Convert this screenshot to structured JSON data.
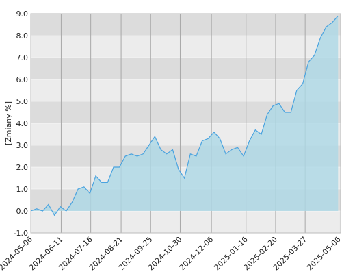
{
  "chart_data": {
    "type": "area",
    "y_label": "[Zmiany %]",
    "x": [
      "2024-05-06",
      "2024-05-13",
      "2024-05-20",
      "2024-05-27",
      "2024-06-03",
      "2024-06-10",
      "2024-06-17",
      "2024-06-24",
      "2024-07-01",
      "2024-07-08",
      "2024-07-15",
      "2024-07-22",
      "2024-07-29",
      "2024-08-05",
      "2024-08-12",
      "2024-08-19",
      "2024-08-26",
      "2024-09-02",
      "2024-09-09",
      "2024-09-16",
      "2024-09-23",
      "2024-09-30",
      "2024-10-07",
      "2024-10-14",
      "2024-10-21",
      "2024-10-28",
      "2024-11-04",
      "2024-11-11",
      "2024-11-18",
      "2024-11-25",
      "2024-12-02",
      "2024-12-09",
      "2024-12-16",
      "2024-12-23",
      "2024-12-30",
      "2025-01-06",
      "2025-01-13",
      "2025-01-20",
      "2025-01-27",
      "2025-02-03",
      "2025-02-10",
      "2025-02-17",
      "2025-02-24",
      "2025-03-03",
      "2025-03-10",
      "2025-03-17",
      "2025-03-24",
      "2025-03-31",
      "2025-04-07",
      "2025-04-14",
      "2025-04-21",
      "2025-04-28",
      "2025-05-05"
    ],
    "series": [
      {
        "color": "#4aa3df",
        "fill": "#add8e6",
        "values": [
          0.0,
          0.1,
          0.0,
          0.3,
          -0.2,
          0.2,
          0.0,
          0.4,
          1.0,
          1.1,
          0.8,
          1.6,
          1.3,
          1.3,
          2.0,
          2.0,
          2.5,
          2.6,
          2.5,
          2.6,
          3.0,
          3.4,
          2.8,
          2.6,
          2.8,
          1.9,
          1.5,
          2.6,
          2.5,
          3.2,
          3.3,
          3.6,
          3.3,
          2.6,
          2.8,
          2.9,
          2.5,
          3.2,
          3.7,
          3.5,
          4.4,
          4.8,
          4.9,
          4.5,
          4.5,
          5.5,
          5.8,
          6.8,
          7.1,
          7.9,
          8.4,
          8.6,
          8.9
        ]
      }
    ],
    "xlim": [
      "2024-05-06",
      "2025-05-08"
    ],
    "xticks": [
      "2024-05-06",
      "2024-06-11",
      "2024-07-16",
      "2024-08-21",
      "2024-09-25",
      "2024-10-30",
      "2024-12-06",
      "2025-01-16",
      "2025-02-20",
      "2025-03-27",
      "2025-05-06"
    ],
    "ylim": [
      -1,
      9
    ],
    "yticks": [
      {
        "value": -1,
        "label": "-1.0"
      },
      {
        "value": 0,
        "label": "0.0"
      },
      {
        "value": 1,
        "label": "1.0"
      },
      {
        "value": 2,
        "label": "2.0"
      },
      {
        "value": 3,
        "label": "3.0"
      },
      {
        "value": 4,
        "label": "4.0"
      },
      {
        "value": 5,
        "label": "5.0"
      },
      {
        "value": 6,
        "label": "6.0"
      },
      {
        "value": 7,
        "label": "7.0"
      },
      {
        "value": 8,
        "label": "8.0"
      },
      {
        "value": 9,
        "label": "9.0"
      }
    ],
    "grid": true
  }
}
